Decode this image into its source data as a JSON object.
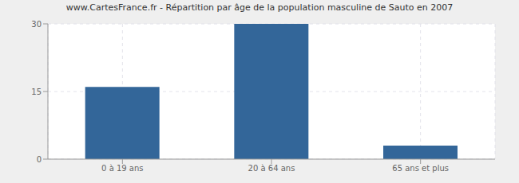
{
  "chart_data": {
    "type": "bar",
    "title": "www.CartesFrance.fr - Répartition par âge de la population masculine de Sauto en 2007",
    "categories": [
      "0 à 19 ans",
      "20 à 64 ans",
      "65 ans et plus"
    ],
    "values": [
      16,
      30,
      3
    ],
    "color": "#336699",
    "ylim": [
      0,
      30
    ],
    "yticks": [
      0,
      15,
      30
    ],
    "grid": true
  }
}
